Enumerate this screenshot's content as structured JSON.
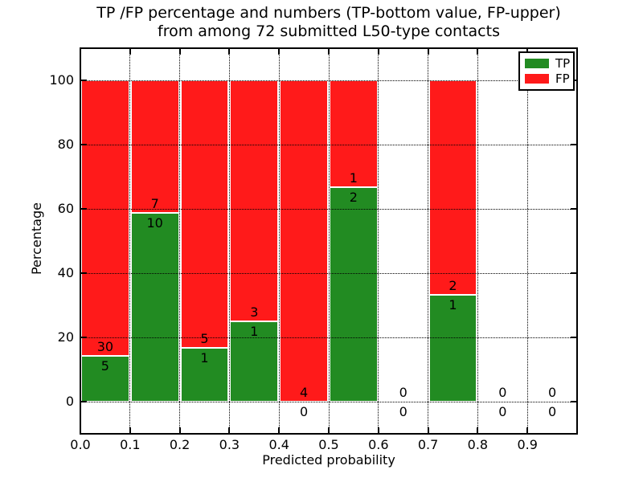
{
  "chart_data": {
    "type": "bar",
    "stacked": true,
    "title": "TP /FP percentage and numbers (TP-bottom value, FP-upper)",
    "title_line2": "from among 72 submitted L50-type contacts",
    "xlabel": "Predicted probability",
    "ylabel": "Percentage",
    "xlim": [
      0.0,
      1.0
    ],
    "ylim": [
      -10,
      110
    ],
    "xticks": [
      "0.0",
      "0.1",
      "0.2",
      "0.3",
      "0.4",
      "0.5",
      "0.6",
      "0.7",
      "0.8",
      "0.9"
    ],
    "yticks": [
      0,
      20,
      40,
      60,
      80,
      100
    ],
    "grid": "dotted, drawn over bars",
    "legend": {
      "position": "upper right",
      "entries": [
        {
          "label": "TP",
          "color": "#228b22"
        },
        {
          "label": "FP",
          "color": "#ff1a1a"
        }
      ]
    },
    "bins": [
      {
        "range": [
          0.0,
          0.1
        ],
        "tp": 5,
        "fp": 30,
        "tp_pct": 14.29,
        "bar_total_pct": 100
      },
      {
        "range": [
          0.1,
          0.2
        ],
        "tp": 10,
        "fp": 7,
        "tp_pct": 58.82,
        "bar_total_pct": 100
      },
      {
        "range": [
          0.2,
          0.3
        ],
        "tp": 1,
        "fp": 5,
        "tp_pct": 16.67,
        "bar_total_pct": 100
      },
      {
        "range": [
          0.3,
          0.4
        ],
        "tp": 1,
        "fp": 3,
        "tp_pct": 25.0,
        "bar_total_pct": 100
      },
      {
        "range": [
          0.4,
          0.5
        ],
        "tp": 0,
        "fp": 4,
        "tp_pct": 0.0,
        "bar_total_pct": 100
      },
      {
        "range": [
          0.5,
          0.6
        ],
        "tp": 2,
        "fp": 1,
        "tp_pct": 66.67,
        "bar_total_pct": 100
      },
      {
        "range": [
          0.6,
          0.7
        ],
        "tp": 0,
        "fp": 0,
        "tp_pct": 0.0,
        "bar_total_pct": 0
      },
      {
        "range": [
          0.7,
          0.8
        ],
        "tp": 1,
        "fp": 2,
        "tp_pct": 33.33,
        "bar_total_pct": 100
      },
      {
        "range": [
          0.8,
          0.9
        ],
        "tp": 0,
        "fp": 0,
        "tp_pct": 0.0,
        "bar_total_pct": 0
      },
      {
        "range": [
          0.9,
          1.0
        ],
        "tp": 0,
        "fp": 0,
        "tp_pct": 0.0,
        "bar_total_pct": 0
      }
    ],
    "colors": {
      "tp_green": "#228b22",
      "fp_red": "#ff1a1a",
      "background": "#ffffff",
      "text": "#000000",
      "bar_edge": "#ffffff"
    }
  }
}
